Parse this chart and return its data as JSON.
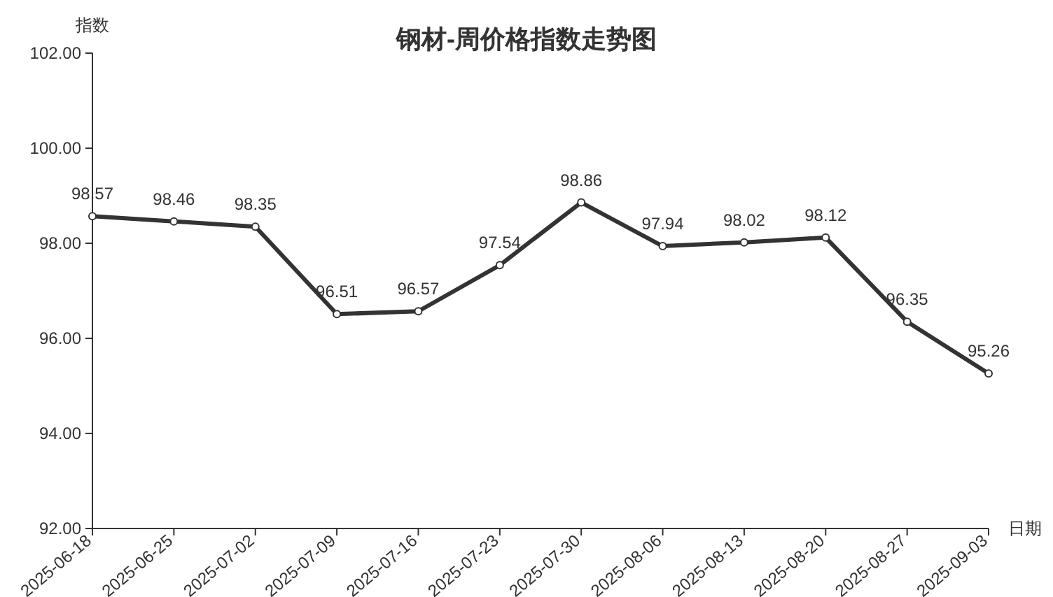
{
  "chart_data": {
    "type": "line",
    "title": "钢材-周价格指数走势图",
    "ylabel": "指数",
    "xlabel": "日期",
    "categories": [
      "2025-06-18",
      "2025-06-25",
      "2025-07-02",
      "2025-07-09",
      "2025-07-16",
      "2025-07-23",
      "2025-07-30",
      "2025-08-06",
      "2025-08-13",
      "2025-08-20",
      "2025-08-27",
      "2025-09-03"
    ],
    "series": [
      {
        "color": "#333333",
        "values": [
          98.57,
          98.46,
          98.35,
          96.51,
          96.57,
          97.54,
          98.86,
          97.94,
          98.02,
          98.12,
          96.35,
          95.26
        ]
      }
    ],
    "ylim": [
      92,
      102
    ],
    "yticks": [
      {
        "value": 92,
        "label": "92.00"
      },
      {
        "value": 94,
        "label": "94.00"
      },
      {
        "value": 96,
        "label": "96.00"
      },
      {
        "value": 98,
        "label": "98.00"
      },
      {
        "value": 100,
        "label": "100.00"
      },
      {
        "value": 102,
        "label": "102.00"
      }
    ],
    "data_labels": true,
    "marker": "circle",
    "line_style": "solid"
  }
}
